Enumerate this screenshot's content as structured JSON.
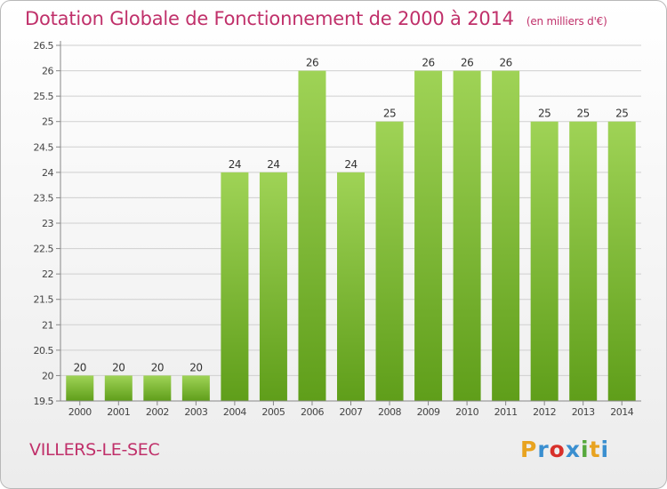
{
  "header": {
    "title": "Dotation Globale de Fonctionnement de 2000 à 2014",
    "unit": "(en milliers d'€)"
  },
  "footer": {
    "commune": "VILLERS-LE-SEC",
    "brand": "Proxiti",
    "brand_colors": [
      "#e8a320",
      "#3a8fd0",
      "#d8302a",
      "#3a8fd0",
      "#56a83c",
      "#e8a320",
      "#3a8fd0"
    ]
  },
  "colors": {
    "title": "#c0306a",
    "bar_top": "#9fd356",
    "bar_bottom": "#5f9e1a",
    "grid": "#cfcfcf"
  },
  "chart_data": {
    "type": "bar",
    "title": "Dotation Globale de Fonctionnement de 2000 à 2014",
    "subtitle": "(en milliers d'€)",
    "categories": [
      "2000",
      "2001",
      "2002",
      "2003",
      "2004",
      "2005",
      "2006",
      "2007",
      "2008",
      "2009",
      "2010",
      "2011",
      "2012",
      "2013",
      "2014"
    ],
    "values": [
      20,
      20,
      20,
      20,
      24,
      24,
      26,
      24,
      25,
      26,
      26,
      26,
      25,
      25,
      25
    ],
    "data_labels": [
      "20",
      "20",
      "20",
      "20",
      "24",
      "24",
      "26",
      "24",
      "25",
      "26",
      "26",
      "26",
      "25",
      "25",
      "25"
    ],
    "yticks": [
      "19.5",
      "20",
      "20.5",
      "21",
      "21.5",
      "22",
      "22.5",
      "23",
      "23.5",
      "24",
      "24.5",
      "25",
      "25.5",
      "26",
      "26.5"
    ],
    "ylim": [
      19.5,
      26.5
    ],
    "grid": true,
    "legend": false
  }
}
